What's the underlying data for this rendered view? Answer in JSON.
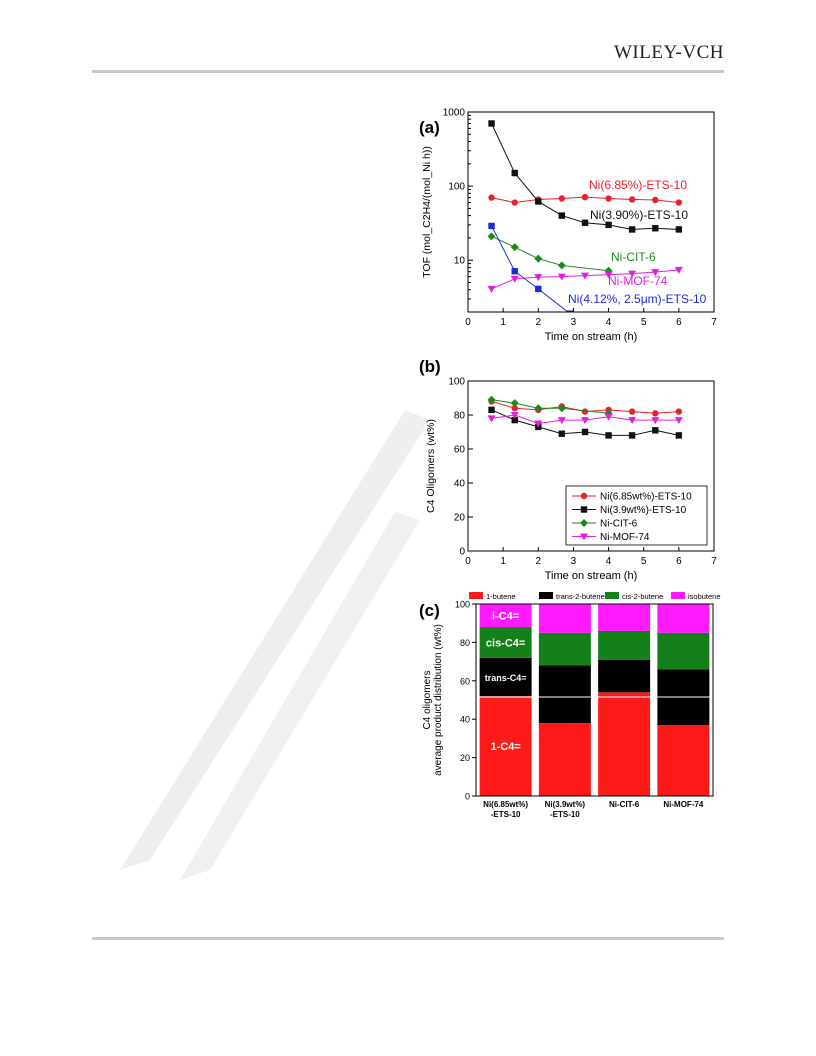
{
  "header": {
    "brand": "WILEY-VCH"
  },
  "chart_data": [
    {
      "panel": "(a)",
      "type": "line",
      "ylabel": "TOF (mol_C2H4/(mol_Ni h))",
      "xlabel": "Time on stream (h)",
      "xlim": [
        0,
        7
      ],
      "xticks": [
        0,
        1,
        2,
        3,
        4,
        5,
        6,
        7
      ],
      "ylim": [
        2,
        1000
      ],
      "yscale": "log",
      "yticks": [
        10,
        100,
        1000
      ],
      "series": [
        {
          "name": "Ni(6.85%)-ETS-10",
          "color": "#e8212b",
          "marker": "circle",
          "x": [
            0.67,
            1.33,
            2.0,
            2.67,
            3.33,
            4.0,
            4.67,
            5.33,
            6.0
          ],
          "y": [
            70,
            60,
            66,
            68,
            71,
            68,
            66,
            65,
            60
          ]
        },
        {
          "name": "Ni(3.90%)-ETS-10",
          "color": "#111111",
          "marker": "square",
          "x": [
            0.67,
            1.33,
            2.0,
            2.67,
            3.33,
            4.0,
            4.67,
            5.33,
            6.0
          ],
          "y": [
            700,
            150,
            62,
            40,
            32,
            30,
            26,
            27,
            26
          ]
        },
        {
          "name": "Ni-CIT-6",
          "color": "#1a8a1a",
          "marker": "diamond",
          "x": [
            0.67,
            1.33,
            2.0,
            2.67,
            4.0
          ],
          "y": [
            21,
            15,
            10.5,
            8.5,
            7.2
          ]
        },
        {
          "name": "Ni-MOF-74",
          "color": "#e020e0",
          "marker": "triangle-down",
          "x": [
            0.67,
            1.33,
            2.0,
            2.67,
            3.33,
            4.0,
            4.67,
            5.33,
            6.0
          ],
          "y": [
            4.1,
            5.6,
            5.9,
            6.0,
            6.2,
            6.4,
            6.6,
            6.9,
            7.4
          ]
        },
        {
          "name": "Ni(4.12%, 2.5μm)-ETS-10",
          "color": "#1c2bd8",
          "marker": "square",
          "x": [
            0.67,
            1.33,
            2.0,
            2.9
          ],
          "y": [
            29,
            7.1,
            4.1,
            1.9
          ]
        }
      ]
    },
    {
      "panel": "(b)",
      "type": "line",
      "ylabel": "C4 Oligomers (wt%)",
      "xlabel": "Time on stream (h)",
      "xlim": [
        0,
        7
      ],
      "xticks": [
        0,
        1,
        2,
        3,
        4,
        5,
        6,
        7
      ],
      "ylim": [
        0,
        100
      ],
      "yticks": [
        0,
        20,
        40,
        60,
        80,
        100
      ],
      "legend_position": "bottom-right",
      "series": [
        {
          "name": "Ni(6.85wt%)-ETS-10",
          "color": "#e8212b",
          "marker": "circle",
          "x": [
            0.67,
            1.33,
            2.0,
            2.67,
            3.33,
            4.0,
            4.67,
            5.33,
            6.0
          ],
          "y": [
            88,
            84,
            83,
            85,
            82,
            83,
            82,
            81,
            82
          ]
        },
        {
          "name": "Ni(3.9wt%)-ETS-10",
          "color": "#111111",
          "marker": "square",
          "x": [
            0.67,
            1.33,
            2.0,
            2.67,
            3.33,
            4.0,
            4.67,
            5.33,
            6.0
          ],
          "y": [
            83,
            77,
            73,
            69,
            70,
            68,
            68,
            71,
            68
          ]
        },
        {
          "name": "Ni-CIT-6",
          "color": "#1a8a1a",
          "marker": "diamond",
          "x": [
            0.67,
            1.33,
            2.0,
            2.67,
            4.0
          ],
          "y": [
            89,
            87,
            84,
            84,
            81
          ]
        },
        {
          "name": "Ni-MOF-74",
          "color": "#e020e0",
          "marker": "triangle-down",
          "x": [
            0.67,
            1.33,
            2.0,
            2.67,
            3.33,
            4.0,
            4.67,
            5.33,
            6.0
          ],
          "y": [
            78,
            80,
            75,
            77,
            77,
            79,
            77,
            77,
            77
          ]
        }
      ]
    },
    {
      "panel": "(c)",
      "type": "bar",
      "stacked": true,
      "ylabel_line1": "C4 oligomers",
      "ylabel_line2": "average product distribution (wt%)",
      "ylim": [
        0,
        100
      ],
      "yticks": [
        0,
        20,
        40,
        60,
        80,
        100
      ],
      "categories": [
        "Ni(6.85wt%)\n-ETS-10",
        "Ni(3.9wt%)\n-ETS-10",
        "Ni-CIT-6",
        "Ni-MOF-74"
      ],
      "series": [
        {
          "name": "1-butene",
          "color": "#ff1a1a",
          "values": [
            52,
            38,
            54,
            37
          ]
        },
        {
          "name": "trans-2-butene",
          "color": "#000000",
          "values": [
            20,
            30,
            17,
            29
          ]
        },
        {
          "name": "cis-2-butene",
          "color": "#14801a",
          "values": [
            16,
            17,
            15,
            19
          ]
        },
        {
          "name": "isobutene",
          "color": "#ff1aff",
          "values": [
            12,
            15,
            14,
            15
          ]
        }
      ],
      "segment_labels": [
        "1-C4=",
        "trans-C4=",
        "cis-C4=",
        "i-C4="
      ]
    }
  ]
}
